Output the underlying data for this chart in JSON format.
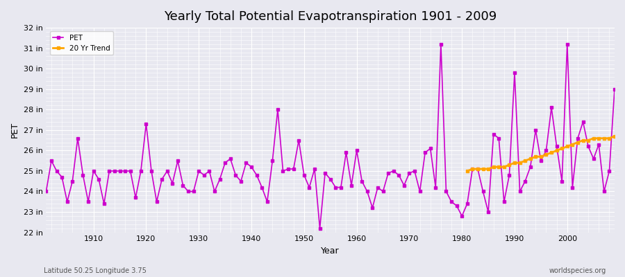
{
  "title": "Yearly Total Potential Evapotranspiration 1901 - 2009",
  "xlabel": "Year",
  "ylabel": "PET",
  "subtitle_left": "Latitude 50.25 Longitude 3.75",
  "subtitle_right": "worldspecies.org",
  "ylim": [
    22,
    32
  ],
  "yticks": [
    22,
    23,
    24,
    25,
    26,
    27,
    28,
    29,
    30,
    31,
    32
  ],
  "ytick_labels": [
    "22 in",
    "23 in",
    "24 in",
    "25 in",
    "26 in",
    "27 in",
    "28 in",
    "29 in",
    "30 in",
    "31 in",
    "32 in"
  ],
  "pet_color": "#cc00cc",
  "trend_color": "#ffa500",
  "background_color": "#e8e8f0",
  "plot_bg_color": "#e8e8f0",
  "grid_color": "#ffffff",
  "pet_years": [
    1901,
    1902,
    1903,
    1904,
    1905,
    1906,
    1907,
    1908,
    1909,
    1910,
    1911,
    1912,
    1913,
    1914,
    1915,
    1916,
    1917,
    1918,
    1919,
    1920,
    1921,
    1922,
    1923,
    1924,
    1925,
    1926,
    1927,
    1928,
    1929,
    1930,
    1931,
    1932,
    1933,
    1934,
    1935,
    1936,
    1937,
    1938,
    1939,
    1940,
    1941,
    1942,
    1943,
    1944,
    1945,
    1946,
    1947,
    1948,
    1949,
    1950,
    1951,
    1952,
    1953,
    1954,
    1955,
    1956,
    1957,
    1958,
    1959,
    1960,
    1961,
    1962,
    1963,
    1964,
    1965,
    1966,
    1967,
    1968,
    1969,
    1970,
    1971,
    1972,
    1973,
    1974,
    1975,
    1976,
    1977,
    1978,
    1979,
    1980,
    1981,
    1982,
    1983,
    1984,
    1985,
    1986,
    1987,
    1988,
    1989,
    1990,
    1991,
    1992,
    1993,
    1994,
    1995,
    1996,
    1997,
    1998,
    1999,
    2000,
    2001,
    2002,
    2003,
    2004,
    2005,
    2006,
    2007,
    2008,
    2009
  ],
  "pet_values": [
    24.0,
    25.5,
    25.0,
    24.7,
    23.5,
    24.5,
    26.6,
    24.8,
    23.5,
    25.0,
    24.6,
    23.4,
    25.0,
    25.0,
    25.0,
    25.0,
    25.0,
    23.7,
    25.0,
    27.3,
    25.0,
    23.5,
    24.6,
    25.0,
    24.4,
    25.5,
    24.3,
    24.0,
    24.0,
    25.0,
    24.8,
    25.0,
    24.0,
    24.6,
    25.4,
    25.6,
    24.8,
    24.5,
    25.4,
    25.2,
    24.8,
    24.2,
    23.5,
    25.5,
    28.0,
    25.0,
    25.1,
    25.1,
    26.5,
    24.8,
    24.2,
    25.1,
    22.2,
    24.9,
    24.6,
    24.2,
    24.2,
    25.9,
    24.3,
    26.0,
    24.5,
    24.0,
    23.2,
    24.2,
    24.0,
    24.9,
    25.0,
    24.8,
    24.3,
    24.9,
    25.0,
    24.0,
    25.9,
    26.1,
    24.2,
    31.2,
    24.0,
    23.5,
    23.3,
    22.8,
    23.4,
    25.1,
    25.1,
    24.0,
    23.0,
    26.8,
    26.6,
    23.5,
    24.8,
    29.8,
    24.0,
    24.5,
    25.2,
    27.0,
    25.5,
    26.0,
    28.1,
    26.2,
    24.5,
    31.2,
    24.2,
    26.6,
    27.4,
    26.2,
    25.6,
    26.3,
    24.0,
    25.0,
    29.0
  ],
  "trend_years": [
    1981,
    1982,
    1983,
    1984,
    1985,
    1986,
    1987,
    1988,
    1989,
    1990,
    1991,
    1992,
    1993,
    1994,
    1995,
    1996,
    1997,
    1998,
    1999,
    2000,
    2001,
    2002,
    2003,
    2004,
    2005,
    2006,
    2007,
    2008,
    2009
  ],
  "trend_values": [
    25.0,
    25.1,
    25.1,
    25.1,
    25.1,
    25.2,
    25.2,
    25.2,
    25.3,
    25.4,
    25.4,
    25.5,
    25.6,
    25.7,
    25.7,
    25.8,
    25.9,
    26.0,
    26.1,
    26.2,
    26.3,
    26.4,
    26.5,
    26.5,
    26.6,
    26.6,
    26.6,
    26.6,
    26.7
  ]
}
